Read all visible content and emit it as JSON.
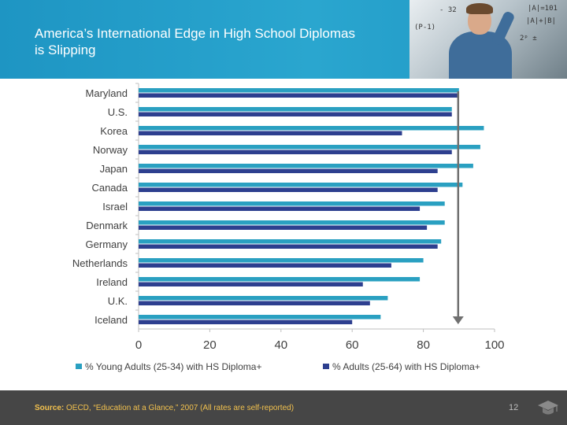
{
  "slide": {
    "title": "America’s International Edge in High School Diplomas is Slipping",
    "footer": {
      "source_label": "Source:",
      "source_text": " OECD, “Education at a Glance,” 2007 (All rates are self-reported)",
      "page_number": "12"
    },
    "icons": [
      "teacher-photo",
      "graduation-cap-icon"
    ]
  },
  "colors": {
    "header": "#1f94bf",
    "series_young": "#2aa0c1",
    "series_adults": "#2d3f8f",
    "footer": "#464646",
    "source_text": "#f2c14e",
    "marker_arrow": "#707070"
  },
  "chart_data": {
    "type": "bar",
    "orientation": "horizontal",
    "categories": [
      "Maryland",
      "U.S.",
      "Korea",
      "Norway",
      "Japan",
      "Canada",
      "Israel",
      "Denmark",
      "Germany",
      "Netherlands",
      "Ireland",
      "U.K.",
      "Iceland"
    ],
    "series": [
      {
        "name": "% Young Adults (25-34) with HS Diploma+",
        "values": [
          90,
          88,
          97,
          96,
          94,
          91,
          86,
          86,
          85,
          80,
          79,
          70,
          68
        ]
      },
      {
        "name": "% Adults (25-64) with HS Diploma+",
        "values": [
          90,
          88,
          74,
          88,
          84,
          84,
          79,
          81,
          84,
          71,
          63,
          65,
          60
        ]
      }
    ],
    "xlim": [
      0,
      100
    ],
    "xticks": [
      "0",
      "20",
      "40",
      "60",
      "80",
      "100"
    ],
    "grid": false,
    "legend_position": "bottom",
    "reference_arrow_value": 90
  }
}
